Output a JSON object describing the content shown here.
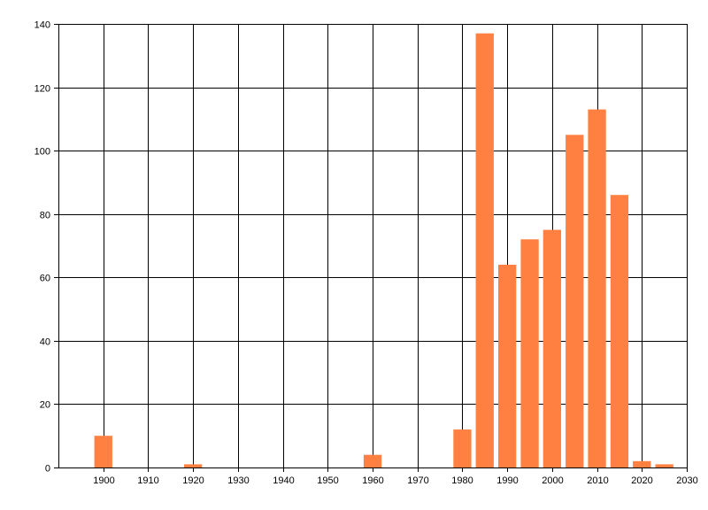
{
  "chart_data": {
    "type": "bar",
    "x": [
      1900,
      1920,
      1960,
      1980,
      1985,
      1990,
      1995,
      2000,
      2005,
      2010,
      2015,
      2020,
      2025
    ],
    "values": [
      10,
      1,
      4,
      12,
      137,
      64,
      72,
      75,
      105,
      113,
      86,
      2,
      1
    ],
    "title": "",
    "xlabel": "",
    "ylabel": "",
    "xlim": [
      1890,
      2030
    ],
    "ylim": [
      0,
      140
    ],
    "xticks": [
      1900,
      1910,
      1920,
      1930,
      1940,
      1950,
      1960,
      1970,
      1980,
      1990,
      2000,
      2010,
      2020,
      2030
    ],
    "yticks": [
      0,
      20,
      40,
      60,
      80,
      100,
      120,
      140
    ],
    "bar_width": 4,
    "grid": true,
    "legend": "none",
    "colors": {
      "bar": "#FF8040",
      "grid": "#000000",
      "axis": "#000000",
      "text": "#000000",
      "background": "#FFFFFF"
    }
  }
}
